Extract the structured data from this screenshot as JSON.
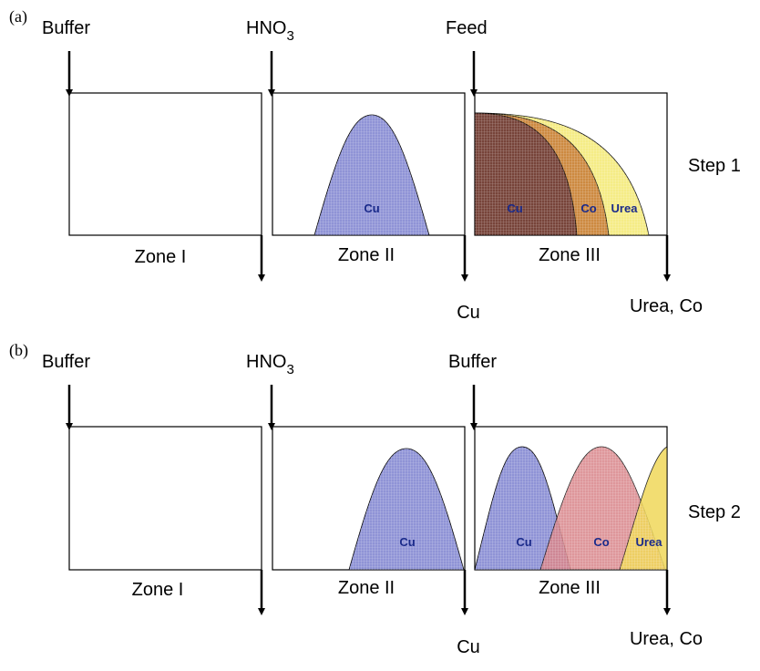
{
  "panels": [
    {
      "label": "(a)",
      "inlets": [
        {
          "label": "Buffer"
        },
        {
          "label": "HNO",
          "subscript": "3"
        },
        {
          "label": "Feed"
        }
      ],
      "zones": [
        "Zone I",
        "Zone II",
        "Zone III"
      ],
      "outlets": [
        "Cu",
        "Urea, Co"
      ],
      "step": "Step 1",
      "peaks": [
        "Cu",
        "Cu",
        "Co",
        "Urea"
      ]
    },
    {
      "label": "(b)",
      "inlets": [
        {
          "label": "Buffer"
        },
        {
          "label": "HNO",
          "subscript": "3"
        },
        {
          "label": "Buffer"
        }
      ],
      "zones": [
        "Zone I",
        "Zone II",
        "Zone III"
      ],
      "outlets": [
        "Cu",
        "Urea, Co"
      ],
      "step": "Step 2",
      "peaks": [
        "Cu",
        "Cu",
        "Co",
        "Urea"
      ]
    }
  ]
}
